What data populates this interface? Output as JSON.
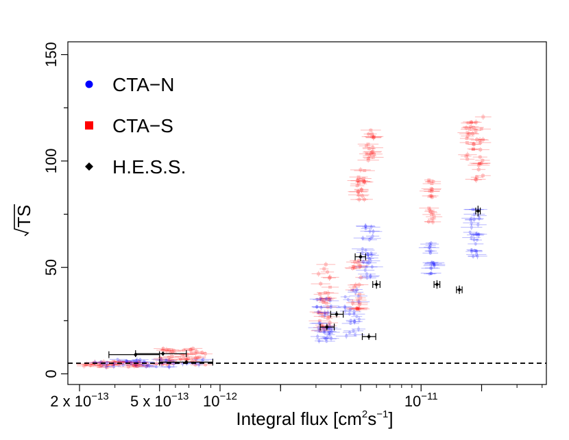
{
  "chart_data": {
    "type": "scatter",
    "title": "",
    "xlabel": "Integral flux [cm2s-1]",
    "ylabel": "√TS",
    "xscale": "log",
    "xlim": [
      1.75e-13,
      4.2e-11
    ],
    "ylim": [
      -5,
      156
    ],
    "yticks": [
      0,
      50,
      100,
      150
    ],
    "ytick_labels": [
      "0",
      "50",
      "100",
      "150"
    ],
    "xtick_labels": [
      {
        "mantissa": "2 x ",
        "base": "10",
        "exp": "−13"
      },
      {
        "mantissa": "5 x ",
        "base": "10",
        "exp": "−13"
      },
      {
        "mantissa": "",
        "base": "10",
        "exp": "−12"
      },
      {
        "mantissa": "",
        "base": "10",
        "exp": "−11"
      }
    ],
    "threshold": {
      "y": 5,
      "style": "dashed"
    },
    "legend": {
      "position": "top-left",
      "entries": [
        {
          "label": "CTA−N",
          "marker": "circle",
          "color": "#0000ff"
        },
        {
          "label": "CTA−S",
          "marker": "square",
          "color": "#ff0000"
        },
        {
          "label": "H.E.S.S.",
          "marker": "diamond",
          "color": "#000000"
        }
      ]
    },
    "series": [
      {
        "name": "CTA−S",
        "color": "#ff0000",
        "clusters": [
          {
            "x": 3.2e-13,
            "y_min": 3,
            "y_max": 6,
            "n": 40,
            "xspread": 0.22
          },
          {
            "x": 6.5e-13,
            "y_min": 4,
            "y_max": 12,
            "n": 40,
            "xspread": 0.12
          },
          {
            "x": 3.3e-12,
            "y_min": 20,
            "y_max": 52,
            "n": 35,
            "xspread": 0.03
          },
          {
            "x": 4.8e-12,
            "y_min": 30,
            "y_max": 55,
            "n": 25,
            "xspread": 0.025
          },
          {
            "x": 5e-12,
            "y_min": 80,
            "y_max": 96,
            "n": 20,
            "xspread": 0.02
          },
          {
            "x": 5.6e-12,
            "y_min": 100,
            "y_max": 115,
            "n": 20,
            "xspread": 0.02
          },
          {
            "x": 1.13e-11,
            "y_min": 70,
            "y_max": 93,
            "n": 20,
            "xspread": 0.015
          },
          {
            "x": 1.75e-11,
            "y_min": 100,
            "y_max": 120,
            "n": 20,
            "xspread": 0.02
          },
          {
            "x": 1.95e-11,
            "y_min": 90,
            "y_max": 122,
            "n": 20,
            "xspread": 0.02
          }
        ]
      },
      {
        "name": "CTA−N",
        "color": "#0000ff",
        "clusters": [
          {
            "x": 4.5e-13,
            "y_min": 3,
            "y_max": 7,
            "n": 40,
            "xspread": 0.28
          },
          {
            "x": 3.3e-12,
            "y_min": 15,
            "y_max": 36,
            "n": 35,
            "xspread": 0.04
          },
          {
            "x": 4.5e-12,
            "y_min": 17,
            "y_max": 40,
            "n": 25,
            "xspread": 0.04
          },
          {
            "x": 5.4e-12,
            "y_min": 45,
            "y_max": 72,
            "n": 30,
            "xspread": 0.03
          },
          {
            "x": 1.13e-11,
            "y_min": 45,
            "y_max": 64,
            "n": 20,
            "xspread": 0.015
          },
          {
            "x": 1.85e-11,
            "y_min": 55,
            "y_max": 78,
            "n": 30,
            "xspread": 0.025
          }
        ]
      }
    ],
    "hess_points": [
      {
        "x": 3.8e-13,
        "xerr_lo": 1e-13,
        "xerr_hi": 1.2e-13,
        "y": 9,
        "yerr": 1
      },
      {
        "x": 5.2e-13,
        "xerr_lo": 1.4e-13,
        "xerr_hi": 1.6e-13,
        "y": 9.5,
        "yerr": 1
      },
      {
        "x": 6.8e-13,
        "xerr_lo": 1.8e-13,
        "xerr_hi": 2.4e-13,
        "y": 5.5,
        "yerr": 1
      },
      {
        "x": 3.4e-12,
        "xerr_lo": 2.5e-13,
        "xerr_hi": 3e-13,
        "y": 22,
        "yerr": 1.5
      },
      {
        "x": 3.8e-12,
        "xerr_lo": 2.5e-13,
        "xerr_hi": 3e-13,
        "y": 28,
        "yerr": 1.5
      },
      {
        "x": 5.5e-12,
        "xerr_lo": 4e-13,
        "xerr_hi": 4.5e-13,
        "y": 17.5,
        "yerr": 1.5
      },
      {
        "x": 5e-12,
        "xerr_lo": 3e-13,
        "xerr_hi": 3e-13,
        "y": 55,
        "yerr": 2
      },
      {
        "x": 6e-12,
        "xerr_lo": 2.5e-13,
        "xerr_hi": 2.5e-13,
        "y": 42,
        "yerr": 2
      },
      {
        "x": 1.2e-11,
        "xerr_lo": 4e-13,
        "xerr_hi": 4e-13,
        "y": 42,
        "yerr": 2
      },
      {
        "x": 1.55e-11,
        "xerr_lo": 5e-13,
        "xerr_hi": 5e-13,
        "y": 39.5,
        "yerr": 2
      },
      {
        "x": 1.92e-11,
        "xerr_lo": 5e-13,
        "xerr_hi": 5e-13,
        "y": 76.5,
        "yerr": 2.5
      }
    ]
  }
}
